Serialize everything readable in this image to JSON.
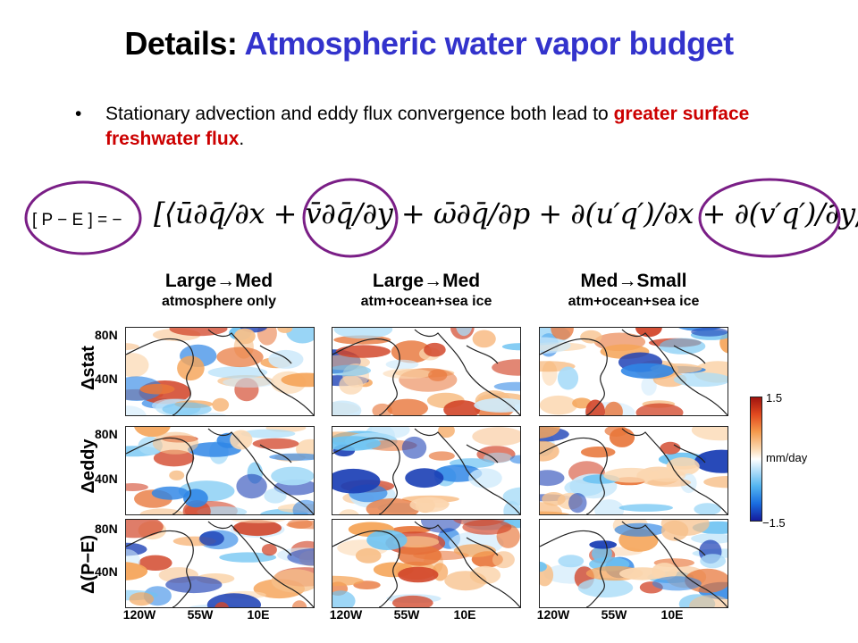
{
  "title": {
    "lead": "Details:",
    "rest": "Atmospheric water vapor budget"
  },
  "bullet": {
    "symbol": "•",
    "text_before": "Stationary advection and eddy flux convergence both lead to ",
    "highlight": "greater surface freshwater flux",
    "text_after": "."
  },
  "equation": {
    "left": "[ P − E ] = −",
    "right": "[⟨ū∂q̄/∂x + v̄∂q̄/∂y + ω̄∂q̄/∂p + ∂(u′q′)/∂x + ∂(v′q′)/∂y⟩]",
    "circle_color": "#7a1e86"
  },
  "columns": [
    {
      "title": "Large→Med",
      "subtitle": "atmosphere only"
    },
    {
      "title": "Large→Med",
      "subtitle": "atm+ocean+sea ice"
    },
    {
      "title": "Med→Small",
      "subtitle": "atm+ocean+sea ice"
    }
  ],
  "rows": [
    {
      "label": "Δstat"
    },
    {
      "label": "Δeddy"
    },
    {
      "label": "Δ(P−E)"
    }
  ],
  "lat_ticks": [
    "80N",
    "40N"
  ],
  "lon_ticks": [
    "120W",
    "55W",
    "10E"
  ],
  "colorbar": {
    "max": "1.5",
    "min": "−1.5",
    "unit": "mm/day"
  },
  "colors": {
    "title_accent": "#3333cc",
    "highlight": "#cc0000"
  }
}
